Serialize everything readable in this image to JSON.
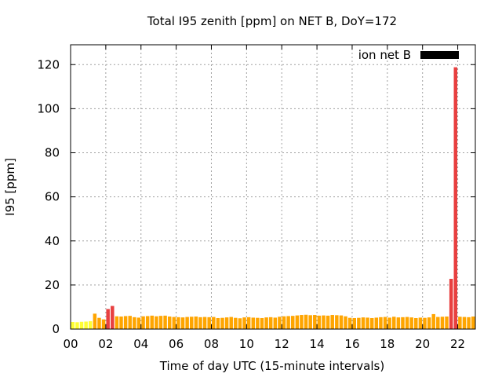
{
  "chart_data": {
    "type": "bar",
    "title": "Total I95 zenith [ppm] on NET B, DoY=172",
    "xlabel": "Time of day UTC (15-minute intervals)",
    "ylabel": "I95 [ppm]",
    "xlim": [
      0,
      23
    ],
    "ylim": [
      0,
      129
    ],
    "x_ticks": [
      "00",
      "02",
      "04",
      "06",
      "08",
      "10",
      "12",
      "14",
      "16",
      "18",
      "20",
      "22"
    ],
    "y_ticks": [
      "0",
      "20",
      "40",
      "60",
      "80",
      "100",
      "120"
    ],
    "grid": true,
    "legend": {
      "position": "top-right",
      "label": "ion net B",
      "color": "#000000"
    },
    "bar_width_hours": 0.2,
    "color_scale": [
      {
        "max": 4,
        "color": "#ffff33"
      },
      {
        "max": 8,
        "color": "#ffa500"
      },
      {
        "max": 1000,
        "color": "#e84040"
      }
    ],
    "series": [
      {
        "values": [
          3.2,
          3.1,
          3.3,
          3.4,
          3.6,
          7.0,
          5.1,
          4.4,
          9.1,
          10.5,
          5.8,
          5.7,
          5.9,
          6.0,
          5.4,
          5.2,
          5.8,
          5.9,
          6.1,
          5.8,
          6.0,
          6.1,
          5.7,
          5.5,
          5.4,
          5.3,
          5.5,
          5.6,
          5.7,
          5.4,
          5.5,
          5.4,
          5.5,
          5.0,
          5.1,
          5.3,
          5.5,
          5.1,
          4.9,
          5.3,
          5.4,
          5.2,
          5.1,
          5.0,
          5.3,
          5.4,
          5.2,
          5.6,
          5.8,
          5.9,
          6.0,
          6.2,
          6.4,
          6.5,
          6.3,
          6.4,
          6.1,
          6.2,
          6.1,
          6.4,
          6.3,
          6.2,
          5.8,
          5.1,
          5.0,
          5.1,
          5.3,
          5.2,
          5.0,
          5.2,
          5.4,
          5.5,
          5.2,
          5.6,
          5.3,
          5.4,
          5.5,
          5.3,
          5.0,
          5.2,
          5.1,
          5.3,
          6.8,
          5.5,
          5.6,
          5.7,
          22.8,
          118.8,
          5.6,
          5.5,
          5.4,
          5.7,
          5.8
        ]
      }
    ]
  }
}
